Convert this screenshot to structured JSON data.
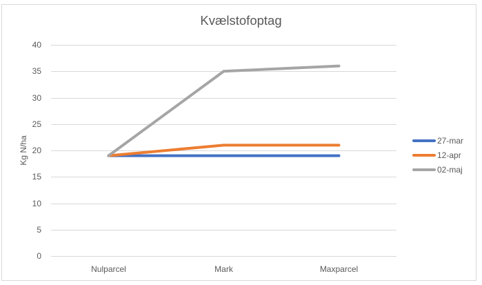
{
  "chart_data": {
    "type": "line",
    "title": "Kvælstofoptag",
    "xlabel": "",
    "ylabel": "Kg N/ha",
    "categories": [
      "Nulparcel",
      "Mark",
      "Maxparcel"
    ],
    "series": [
      {
        "name": "27-mar",
        "color": "#4472c4",
        "values": [
          19,
          19,
          19
        ]
      },
      {
        "name": "12-apr",
        "color": "#ed7d31",
        "values": [
          19,
          21,
          21
        ]
      },
      {
        "name": "02-maj",
        "color": "#a5a5a5",
        "values": [
          19,
          35,
          36
        ]
      }
    ],
    "ylim": [
      0,
      40
    ],
    "yticks": [
      0,
      5,
      10,
      15,
      20,
      25,
      30,
      35,
      40
    ],
    "grid": true,
    "legend_position": "right"
  }
}
